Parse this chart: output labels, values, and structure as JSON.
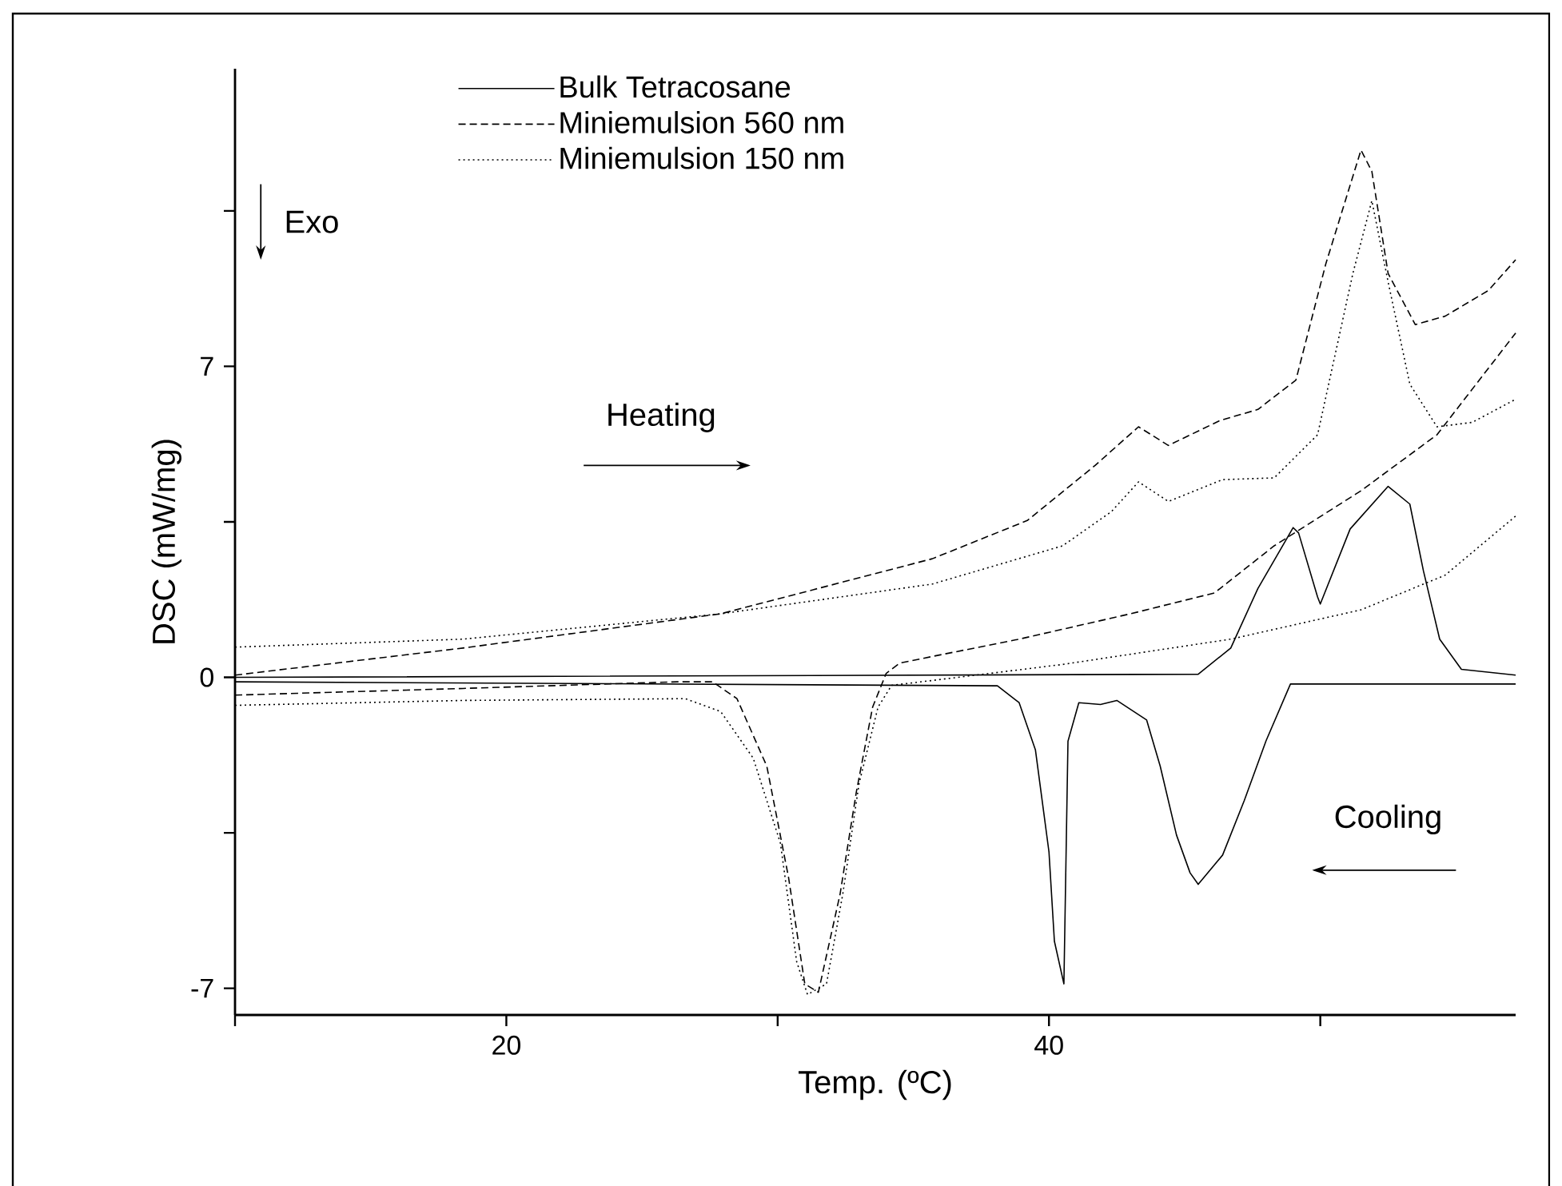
{
  "chart_data": {
    "type": "line",
    "xlabel": "Temp. (ºC)",
    "ylabel": "DSC (mW/mg)",
    "xlim": [
      10,
      57.2
    ],
    "ylim": [
      -7.6,
      13.7
    ],
    "xticks": [
      {
        "value": 10,
        "label": null
      },
      20,
      {
        "value": 30,
        "label": null
      },
      40,
      {
        "value": 50,
        "label": null
      }
    ],
    "yticks": [
      -7,
      {
        "value": -3.5,
        "label": null
      },
      0,
      {
        "value": 3.5,
        "label": null
      },
      7,
      {
        "value": 10.5,
        "label": null
      }
    ],
    "legend": "top left",
    "annotations": [
      "Exo",
      "Heating",
      "Cooling"
    ],
    "series": [
      {
        "name": "Bulk Tetracosane",
        "color": "#000000",
        "line_style": "solid",
        "x": [
          10,
          45.5,
          46.7,
          47.7,
          49.0,
          49.2,
          49.9,
          50.0,
          51.1,
          52.5,
          53.3,
          53.8,
          54.4,
          55.2,
          57.2
        ],
        "values": [
          0.0,
          0.07,
          0.66,
          2.0,
          3.37,
          3.25,
          1.81,
          1.65,
          3.34,
          4.3,
          3.9,
          2.4,
          0.86,
          0.18,
          0.05
        ]
      },
      {
        "name": "Miniemulsion 560 nm",
        "color": "#000000",
        "line_style": "dashed",
        "x": [
          10,
          18.4,
          27.9,
          35.7,
          39.2,
          41.7,
          43.3,
          44.4,
          46.3,
          47.7,
          49.1,
          50.2,
          51.5,
          51.9,
          52.5,
          53.5,
          54.6,
          56.2,
          57.2
        ],
        "values": [
          0.05,
          0.66,
          1.43,
          2.67,
          3.53,
          4.77,
          5.64,
          5.22,
          5.78,
          6.03,
          6.69,
          9.3,
          11.87,
          11.39,
          9.09,
          7.94,
          8.13,
          8.71,
          9.4
        ]
      },
      {
        "name": "Miniemulsion 150 nm",
        "color": "#000000",
        "line_style": "dotted",
        "x": [
          10,
          18.4,
          27.9,
          35.7,
          40.5,
          42.3,
          43.3,
          44.4,
          46.4,
          48.3,
          49.9,
          51.2,
          51.9,
          52.5,
          53.3,
          54.3,
          55.6,
          57.2
        ],
        "values": [
          0.68,
          0.86,
          1.43,
          2.1,
          2.96,
          3.73,
          4.4,
          3.96,
          4.45,
          4.49,
          5.46,
          9.09,
          10.73,
          8.9,
          6.6,
          5.64,
          5.74,
          6.26
        ]
      },
      {
        "color": "#000000",
        "line_style": "solid",
        "x": [
          10,
          38.1,
          38.9,
          39.5,
          40.0,
          40.2,
          40.55,
          40.7,
          41.1,
          41.9,
          42.5,
          43.6,
          44.1,
          44.7,
          45.2,
          45.5,
          46.4,
          47.2,
          48.0,
          48.9,
          57.2
        ],
        "values": [
          -0.1,
          -0.19,
          -0.57,
          -1.63,
          -3.93,
          -5.94,
          -6.9,
          -1.44,
          -0.57,
          -0.61,
          -0.52,
          -0.96,
          -2.0,
          -3.55,
          -4.4,
          -4.66,
          -4.0,
          -2.77,
          -1.43,
          -0.15,
          -0.15
        ]
      },
      {
        "color": "#000000",
        "line_style": "dashed",
        "x": [
          10,
          18.4,
          26.3,
          27.6,
          28.5,
          29.6,
          30.4,
          31.0,
          31.5,
          32.3,
          32.9,
          33.5,
          34.0,
          34.5,
          35.7,
          38.9,
          43.0,
          46.1,
          48.3,
          51.5,
          54.3,
          57.2
        ],
        "values": [
          -0.4,
          -0.25,
          -0.1,
          -0.1,
          -0.48,
          -2.0,
          -4.5,
          -6.9,
          -7.09,
          -4.88,
          -2.58,
          -0.67,
          0.09,
          0.32,
          0.47,
          0.86,
          1.43,
          1.9,
          2.96,
          4.2,
          5.46,
          7.75
        ]
      },
      {
        "color": "#000000",
        "line_style": "dotted",
        "x": [
          10,
          18.4,
          26.6,
          27.9,
          29.1,
          30.1,
          30.7,
          31.1,
          31.8,
          32.4,
          33.0,
          33.7,
          34.2,
          35.7,
          40.5,
          46.7,
          51.5,
          54.6,
          57.2
        ],
        "values": [
          -0.63,
          -0.52,
          -0.48,
          -0.77,
          -1.82,
          -3.73,
          -6.4,
          -7.14,
          -6.9,
          -4.88,
          -2.39,
          -0.67,
          -0.18,
          -0.07,
          0.29,
          0.86,
          1.52,
          2.3,
          3.63
        ]
      }
    ]
  }
}
